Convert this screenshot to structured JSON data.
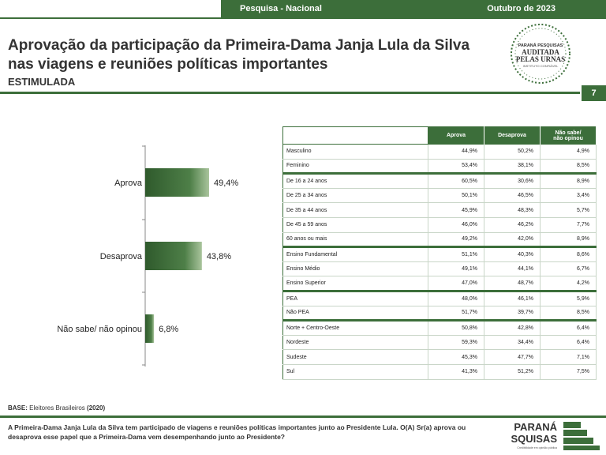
{
  "header": {
    "left": "Pesquisa - Nacional",
    "right": "Outubro de 2023"
  },
  "title": "Aprovação da participação da Primeira-Dama Janja Lula da Silva nas viagens e reuniões políticas importantes",
  "subtitle": "ESTIMULADA",
  "page_number": "7",
  "seal": {
    "line1": "PARANÁ PESQUISAS",
    "line2": "AUDITADA",
    "line3": "PELAS URNAS",
    "line4": "INSTITUTO CONFIÁVEL"
  },
  "chart_data": {
    "type": "bar",
    "orientation": "horizontal",
    "categories": [
      "Aprova",
      "Desaprova",
      "Não sabe/ não opinou"
    ],
    "values": [
      49.4,
      43.8,
      6.8
    ],
    "value_labels": [
      "49,4%",
      "43,8%",
      "6,8%"
    ],
    "xlim": [
      0,
      100
    ],
    "colors": {
      "bar_dark": "#3a6b35",
      "bar_light": "#9cb98f",
      "axis": "#888888"
    }
  },
  "table": {
    "headers": [
      "Aprova",
      "Desaprova",
      "Não sabe/\nnão opinou"
    ],
    "groups": [
      {
        "rows": [
          {
            "label": "Masculino",
            "values": [
              "44,9%",
              "50,2%",
              "4,9%"
            ]
          },
          {
            "label": "Feminino",
            "values": [
              "53,4%",
              "38,1%",
              "8,5%"
            ]
          }
        ]
      },
      {
        "rows": [
          {
            "label": "De 16 a 24 anos",
            "values": [
              "60,5%",
              "30,6%",
              "8,9%"
            ]
          },
          {
            "label": "De 25 a 34 anos",
            "values": [
              "50,1%",
              "46,5%",
              "3,4%"
            ]
          },
          {
            "label": "De 35 a 44 anos",
            "values": [
              "45,9%",
              "48,3%",
              "5,7%"
            ]
          },
          {
            "label": "De 45 a 59 anos",
            "values": [
              "46,0%",
              "46,2%",
              "7,7%"
            ]
          },
          {
            "label": "60 anos ou mais",
            "values": [
              "49,2%",
              "42,0%",
              "8,9%"
            ]
          }
        ]
      },
      {
        "rows": [
          {
            "label": "Ensino Fundamental",
            "values": [
              "51,1%",
              "40,3%",
              "8,6%"
            ]
          },
          {
            "label": "Ensino Médio",
            "values": [
              "49,1%",
              "44,1%",
              "6,7%"
            ]
          },
          {
            "label": "Ensino Superior",
            "values": [
              "47,0%",
              "48,7%",
              "4,2%"
            ]
          }
        ]
      },
      {
        "rows": [
          {
            "label": "PEA",
            "values": [
              "48,0%",
              "46,1%",
              "5,9%"
            ]
          },
          {
            "label": "Não PEA",
            "values": [
              "51,7%",
              "39,7%",
              "8,5%"
            ]
          }
        ]
      },
      {
        "rows": [
          {
            "label": "Norte + Centro-Oeste",
            "values": [
              "50,8%",
              "42,8%",
              "6,4%"
            ]
          },
          {
            "label": "Nordeste",
            "values": [
              "59,3%",
              "34,4%",
              "6,4%"
            ]
          },
          {
            "label": "Sudeste",
            "values": [
              "45,3%",
              "47,7%",
              "7,1%"
            ]
          },
          {
            "label": "Sul",
            "values": [
              "41,3%",
              "51,2%",
              "7,5%"
            ]
          }
        ]
      }
    ]
  },
  "base": {
    "label": "BASE:",
    "text": " Eleitores Brasileiros ",
    "count": "(2020)"
  },
  "question": "A Primeira-Dama Janja Lula da Silva tem participado de viagens e reuniões políticas importantes junto ao Presidente Lula. O(A) Sr(a) aprova ou desaprova esse papel que a Primeira-Dama vem desempenhando junto ao Presidente?",
  "logo": {
    "line1": "PARANÁ",
    "line2": "PESQUISAS",
    "tagline": "Credibilidade em opinião pública"
  }
}
